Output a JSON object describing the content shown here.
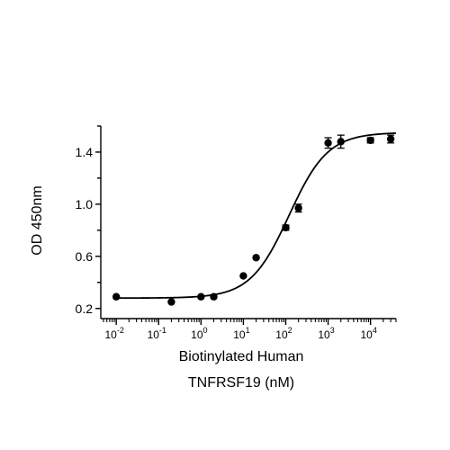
{
  "chart_data": {
    "type": "scatter",
    "title": "",
    "xlabel_lines": [
      "Biotinylated Human",
      "TNFRSF19 (nM)"
    ],
    "ylabel": "OD 450nm",
    "x_scale": "log",
    "xlim": [
      0.005,
      40000
    ],
    "ylim": [
      0.15,
      1.6
    ],
    "x_ticks": [
      {
        "value": 0.01,
        "base": "10",
        "exp": "-2"
      },
      {
        "value": 0.1,
        "base": "10",
        "exp": "-1"
      },
      {
        "value": 1,
        "base": "10",
        "exp": "0"
      },
      {
        "value": 10,
        "base": "10",
        "exp": "1"
      },
      {
        "value": 100,
        "base": "10",
        "exp": "2"
      },
      {
        "value": 1000,
        "base": "10",
        "exp": "3"
      },
      {
        "value": 10000,
        "base": "10",
        "exp": "4"
      }
    ],
    "y_ticks": [
      {
        "value": 0.2,
        "label": "0.2"
      },
      {
        "value": 0.6,
        "label": "0.6"
      },
      {
        "value": 1.0,
        "label": "1.0"
      },
      {
        "value": 1.4,
        "label": "1.4"
      }
    ],
    "grid": false,
    "legend": "none",
    "marker_color": "#000000",
    "points": [
      {
        "x": 0.01,
        "y": 0.29
      },
      {
        "x": 0.2,
        "y": 0.25
      },
      {
        "x": 1,
        "y": 0.29
      },
      {
        "x": 2,
        "y": 0.29
      },
      {
        "x": 10,
        "y": 0.45
      },
      {
        "x": 20,
        "y": 0.59
      },
      {
        "x": 100,
        "y": 0.82,
        "err": 0.02
      },
      {
        "x": 200,
        "y": 0.97,
        "err": 0.03
      },
      {
        "x": 1000,
        "y": 1.47,
        "err": 0.04
      },
      {
        "x": 2000,
        "y": 1.48,
        "err": 0.05
      },
      {
        "x": 10000,
        "y": 1.49,
        "err": 0.02
      },
      {
        "x": 30000,
        "y": 1.5,
        "err": 0.03
      }
    ],
    "fit": {
      "model": "4PL",
      "bottom": 0.28,
      "top": 1.55,
      "ec50": 120,
      "hill": 0.95
    }
  }
}
